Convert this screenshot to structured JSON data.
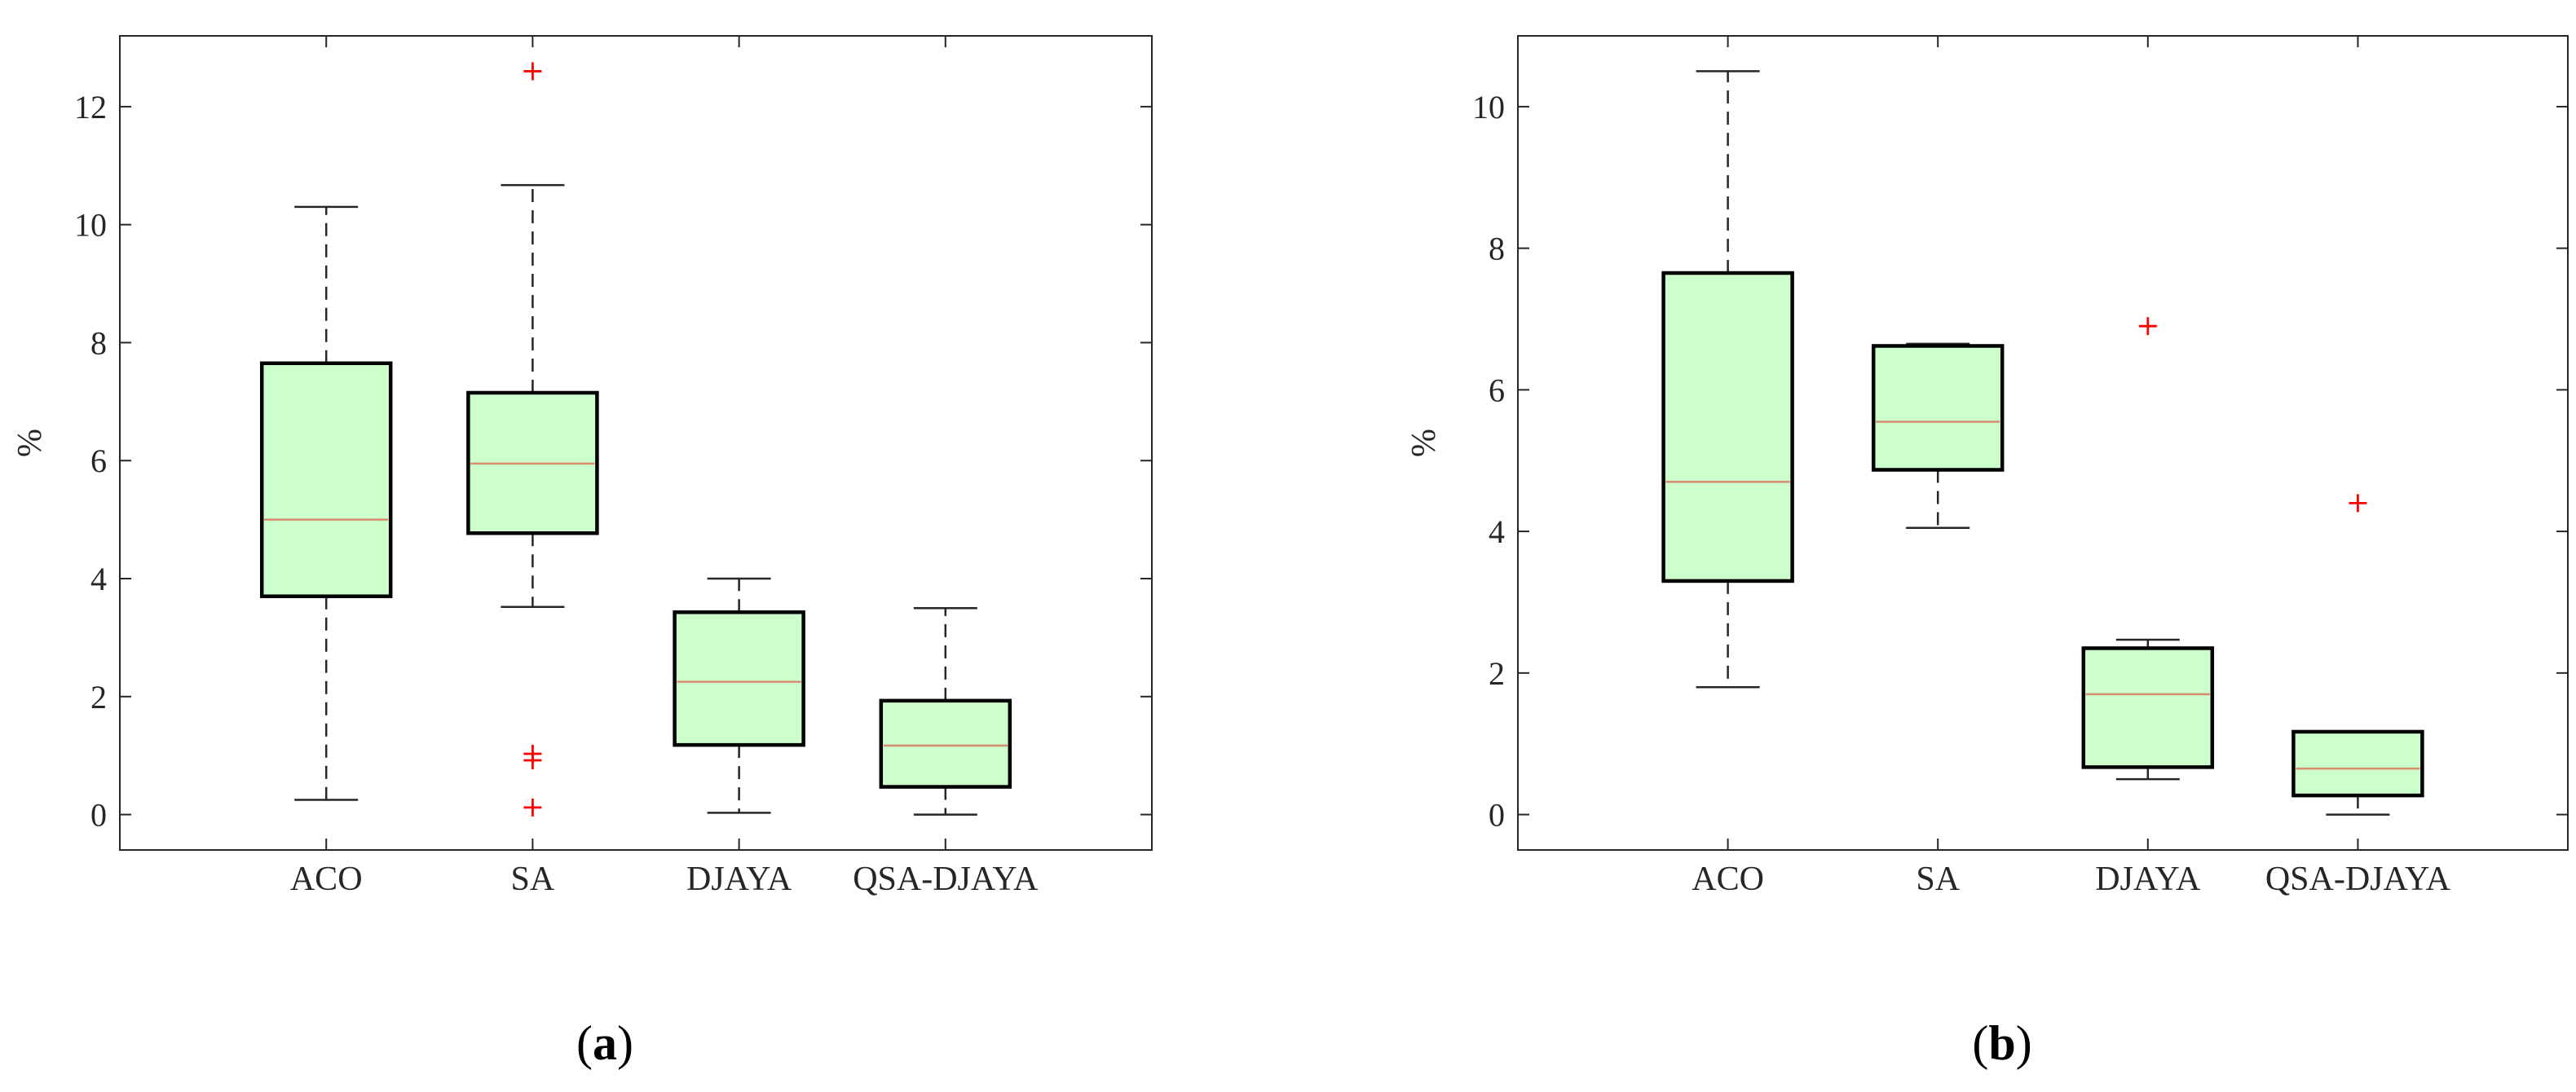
{
  "colors": {
    "box_fill": "#ccffcc",
    "box_edge": "#000000",
    "median": "#d98c6b",
    "outlier": "#ff0000",
    "whisker": "#262626"
  },
  "chart_data": [
    {
      "type": "box",
      "panel_label": "a",
      "ylabel": "%",
      "categories": [
        "ACO",
        "SA",
        "DJAYA",
        "QSA-DJAYA"
      ],
      "ylim": [
        -0.6,
        13.2
      ],
      "yticks": [
        "0",
        "2",
        "4",
        "6",
        "8",
        "10",
        "12"
      ],
      "boxes": [
        {
          "category": "ACO",
          "whisker_low": 0.25,
          "q1": 3.7,
          "median": 5.0,
          "q3": 7.65,
          "whisker_high": 10.3,
          "outliers": []
        },
        {
          "category": "SA",
          "whisker_low": 3.52,
          "q1": 4.77,
          "median": 5.95,
          "q3": 7.15,
          "whisker_high": 10.67,
          "outliers": [
            12.6,
            1.03,
            0.92,
            0.12
          ]
        },
        {
          "category": "DJAYA",
          "whisker_low": 0.03,
          "q1": 1.18,
          "median": 2.25,
          "q3": 3.43,
          "whisker_high": 4.0,
          "outliers": []
        },
        {
          "category": "QSA-DJAYA",
          "whisker_low": 0.0,
          "q1": 0.47,
          "median": 1.17,
          "q3": 1.93,
          "whisker_high": 3.5,
          "outliers": []
        }
      ]
    },
    {
      "type": "box",
      "panel_label": "b",
      "ylabel": "%",
      "categories": [
        "ACO",
        "SA",
        "DJAYA",
        "QSA-DJAYA"
      ],
      "ylim": [
        -0.5,
        11.0
      ],
      "yticks": [
        "0",
        "2",
        "4",
        "6",
        "8",
        "10"
      ],
      "boxes": [
        {
          "category": "ACO",
          "whisker_low": 1.8,
          "q1": 3.3,
          "median": 4.7,
          "q3": 7.65,
          "whisker_high": 10.5,
          "outliers": []
        },
        {
          "category": "SA",
          "whisker_low": 4.05,
          "q1": 4.87,
          "median": 5.55,
          "q3": 6.62,
          "whisker_high": 6.65,
          "outliers": []
        },
        {
          "category": "DJAYA",
          "whisker_low": 0.5,
          "q1": 0.67,
          "median": 1.7,
          "q3": 2.35,
          "whisker_high": 2.47,
          "outliers": [
            6.9
          ]
        },
        {
          "category": "QSA-DJAYA",
          "whisker_low": 0.0,
          "q1": 0.27,
          "median": 0.65,
          "q3": 1.17,
          "whisker_high": 1.17,
          "outliers": [
            4.4
          ]
        }
      ]
    }
  ]
}
